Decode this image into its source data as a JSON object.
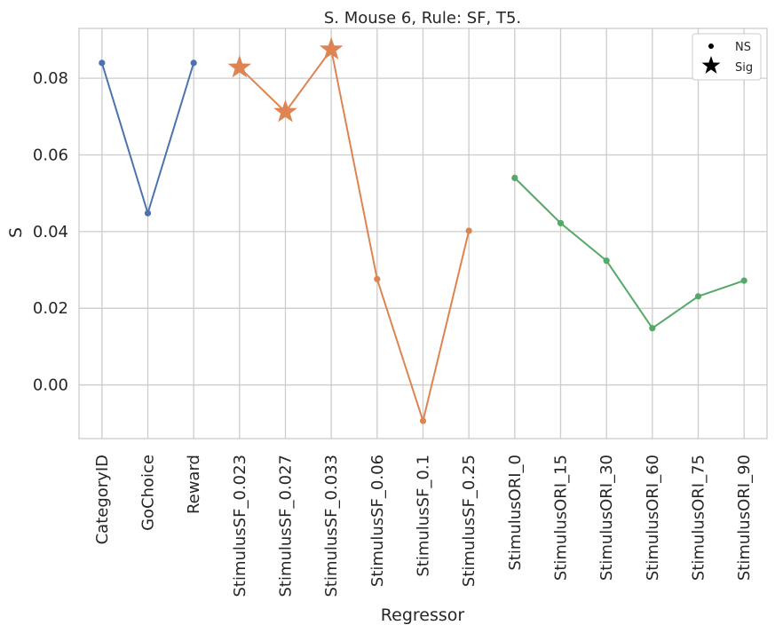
{
  "chart_data": {
    "type": "line",
    "title": "S. Mouse 6, Rule: SF, T5.",
    "xlabel": "Regressor",
    "ylabel": "S",
    "categories": [
      "CategoryID",
      "GoChoice",
      "Reward",
      "StimulusSF_0.023",
      "StimulusSF_0.027",
      "StimulusSF_0.033",
      "StimulusSF_0.06",
      "StimulusSF_0.1",
      "StimulusSF_0.25",
      "StimulusORI_0",
      "StimulusORI_15",
      "StimulusORI_30",
      "StimulusORI_60",
      "StimulusORI_75",
      "StimulusORI_90"
    ],
    "ylim": [
      -0.014,
      0.093
    ],
    "yticks": [
      0.0,
      0.02,
      0.04,
      0.06,
      0.08
    ],
    "ytick_labels": [
      "0.00",
      "0.02",
      "0.04",
      "0.06",
      "0.08"
    ],
    "grid": true,
    "legend_position": "top-right",
    "legend": [
      {
        "label": "NS",
        "marker": "dot"
      },
      {
        "label": "Sig",
        "marker": "star"
      }
    ],
    "series": [
      {
        "color": "#4c72b0",
        "points": [
          {
            "category": "CategoryID",
            "value": 0.084,
            "sig": false
          },
          {
            "category": "GoChoice",
            "value": 0.0448,
            "sig": false
          },
          {
            "category": "Reward",
            "value": 0.084,
            "sig": false
          }
        ]
      },
      {
        "color": "#dd8452",
        "points": [
          {
            "category": "StimulusSF_0.023",
            "value": 0.0828,
            "sig": true
          },
          {
            "category": "StimulusSF_0.027",
            "value": 0.0712,
            "sig": true
          },
          {
            "category": "StimulusSF_0.033",
            "value": 0.0875,
            "sig": true
          },
          {
            "category": "StimulusSF_0.06",
            "value": 0.0276,
            "sig": false
          },
          {
            "category": "StimulusSF_0.1",
            "value": -0.0094,
            "sig": false
          },
          {
            "category": "StimulusSF_0.25",
            "value": 0.0402,
            "sig": false
          }
        ]
      },
      {
        "color": "#55a868",
        "points": [
          {
            "category": "StimulusORI_0",
            "value": 0.054,
            "sig": false
          },
          {
            "category": "StimulusORI_15",
            "value": 0.0422,
            "sig": false
          },
          {
            "category": "StimulusORI_30",
            "value": 0.0324,
            "sig": false
          },
          {
            "category": "StimulusORI_60",
            "value": 0.0148,
            "sig": false
          },
          {
            "category": "StimulusORI_75",
            "value": 0.0231,
            "sig": false
          },
          {
            "category": "StimulusORI_90",
            "value": 0.0272,
            "sig": false
          }
        ]
      }
    ]
  }
}
